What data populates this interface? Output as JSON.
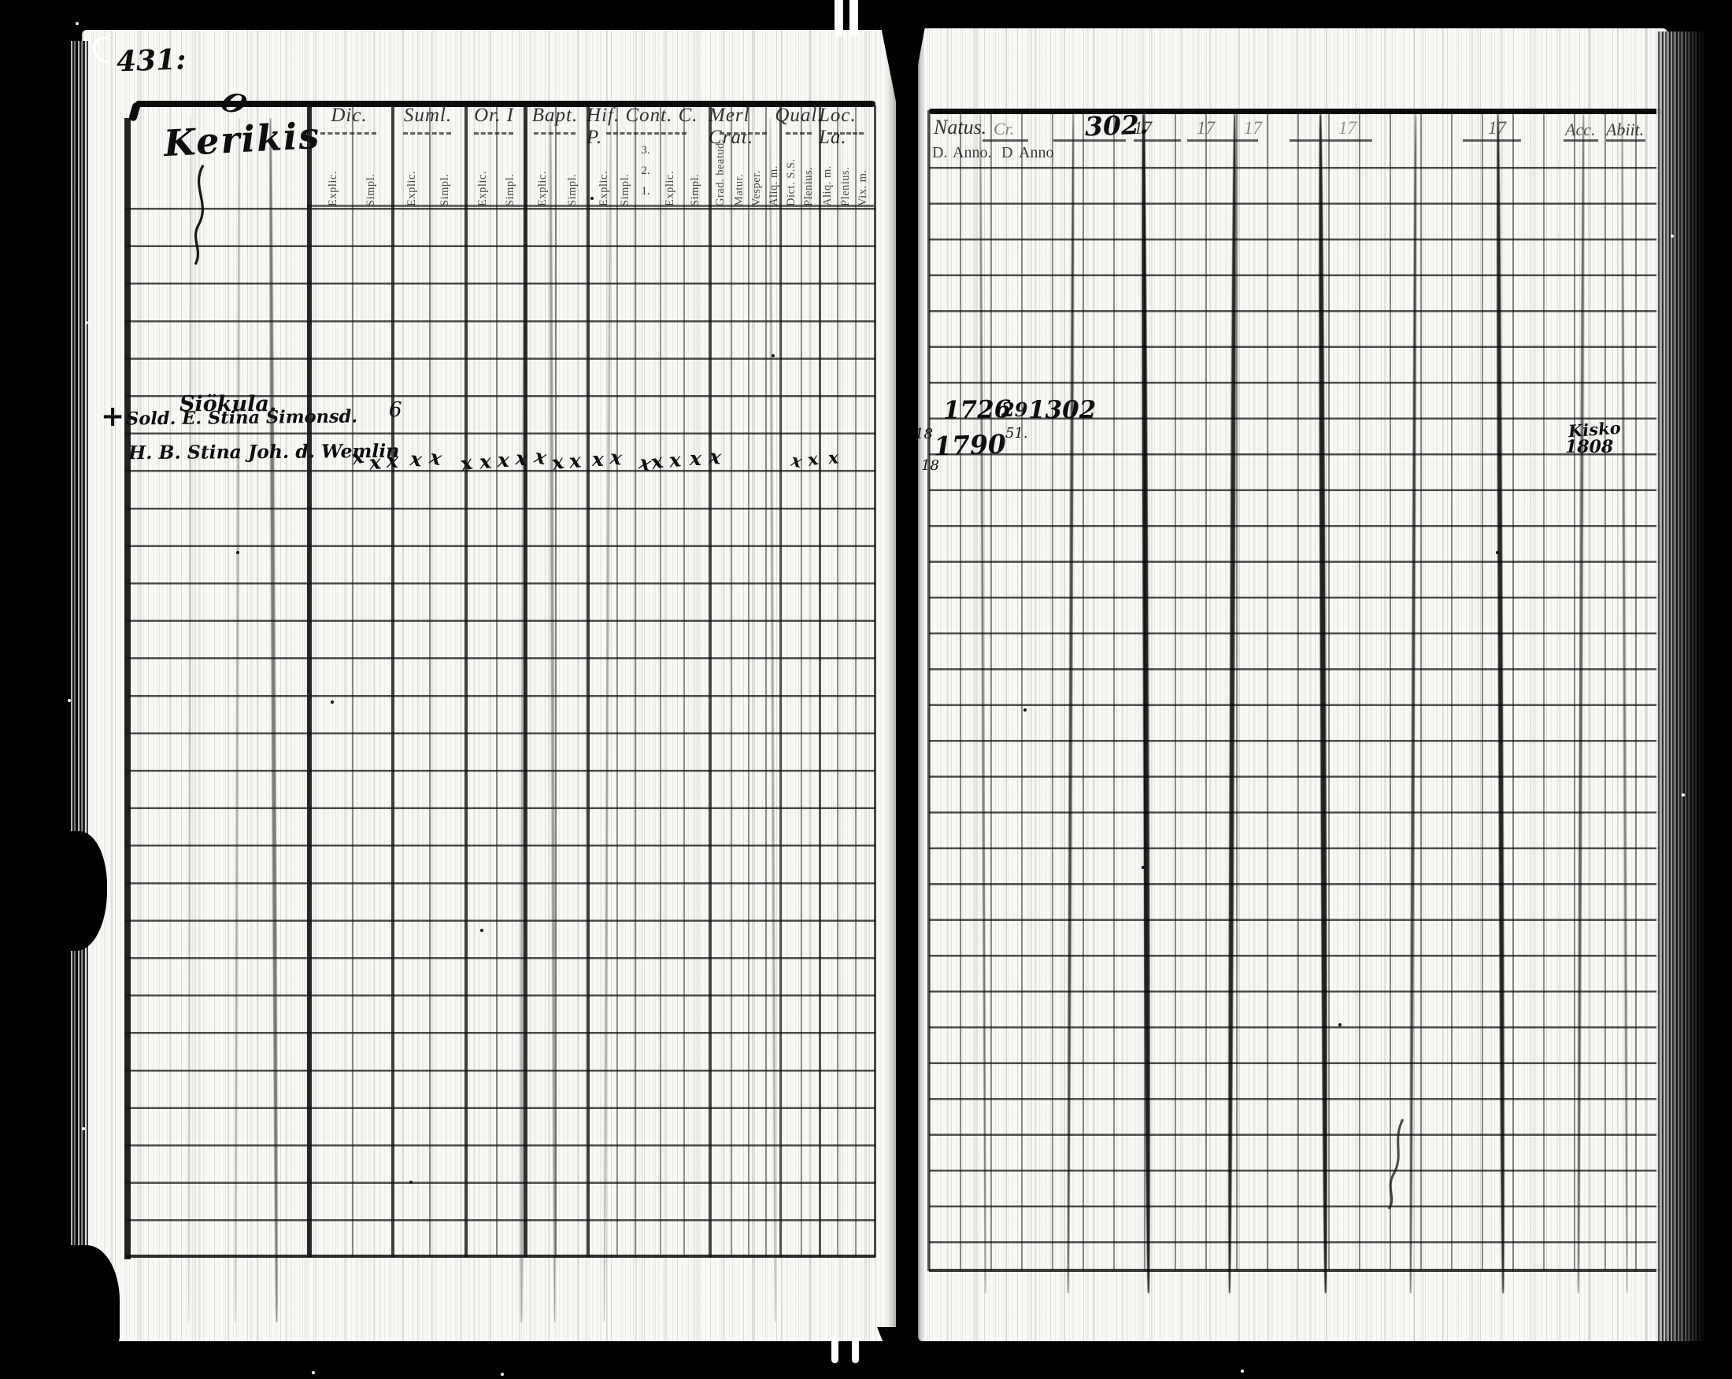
{
  "left_page": {
    "page_number": "431:",
    "title_flourish": "O",
    "title": "Kerikis",
    "columns": [
      {
        "label": "Dic.",
        "subs": [
          "Explic.",
          "Simpl."
        ]
      },
      {
        "label": "Suml.",
        "subs": [
          "Explic.",
          "Simpl."
        ]
      },
      {
        "label": "Or. I",
        "subs": [
          "Explic.",
          "Simpl."
        ]
      },
      {
        "label": "Bapt.",
        "subs": [
          "Explic.",
          "Simpl."
        ]
      },
      {
        "label": "Hif. Cont. C. P.",
        "subs": [
          "Explic.",
          "Simpl.",
          "3.\n2.\n1.",
          "Explic.",
          "Simpl."
        ]
      },
      {
        "label": "Merl Crat.",
        "subs": [
          "Grad. beatud.",
          "Matur.",
          "Vesper.",
          "Aliq. m."
        ]
      },
      {
        "label": "Qual.",
        "subs": [
          "Dict. S.S.",
          "Plenius."
        ]
      },
      {
        "label": "Loc. La.",
        "subs": [
          "Aliq. m.",
          "Plenius.",
          "Vix. m."
        ]
      }
    ],
    "entries": {
      "farm_name": "Siökula.",
      "dic_value": "6",
      "margin_cross": "+",
      "person1": "Sold. E. Stina Simonsd.",
      "person2": "H. B. Stina Joh. d. Wemlin",
      "attendance_marks": "xxxxxxxxxxxxxxxxxxxxxx"
    }
  },
  "right_page": {
    "header": {
      "natus": "Natus.",
      "cr": "Cr.",
      "folio_number": "302.",
      "years": [
        "17",
        "17",
        "17",
        "17",
        "17"
      ],
      "acc": "Acc.",
      "abiit": "Abiit.",
      "sub_d1": "D.",
      "sub_anno1": "Anno.",
      "sub_d2": "D",
      "sub_anno2": "Anno"
    },
    "entries": {
      "born_year_1": "1726",
      "note_upper": "29",
      "note_lower": "51.",
      "ref_number": "1302",
      "margin_18a": "18",
      "born_year_2": "1790",
      "margin_18b": "18",
      "abiit_place": "Kisko",
      "abiit_year": "1808"
    }
  }
}
